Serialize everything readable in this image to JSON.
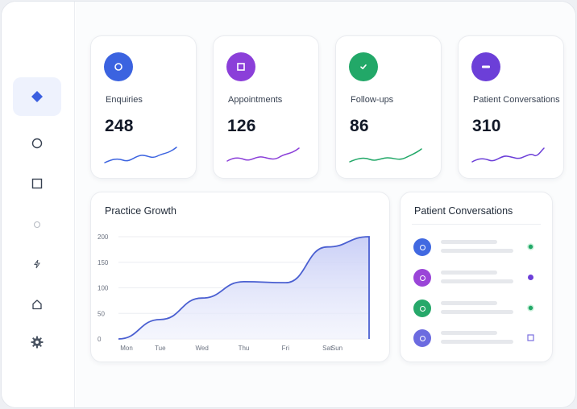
{
  "sidebar": {
    "items": [
      {
        "icon": "diamond-icon",
        "active": true
      },
      {
        "icon": "circle-icon",
        "active": false
      },
      {
        "icon": "square-icon",
        "active": false
      },
      {
        "icon": "small-circle-icon",
        "active": false
      },
      {
        "icon": "bolt-icon",
        "active": false
      },
      {
        "icon": "home-icon",
        "active": false
      },
      {
        "icon": "gear-icon",
        "active": false
      }
    ]
  },
  "stats": [
    {
      "label": "Enquiries",
      "value": "248",
      "color": "#3b63e0",
      "icon": "circle-icon"
    },
    {
      "label": "Appointments",
      "value": "126",
      "color": "#8b3fd9",
      "icon": "square-icon"
    },
    {
      "label": "Follow-ups",
      "value": "86",
      "color": "#22a868",
      "icon": "check-icon"
    },
    {
      "label": "Patient Conversations",
      "value": "310",
      "color": "#6c3fd8",
      "icon": "minus-icon"
    }
  ],
  "growth": {
    "title": "Practice Growth",
    "chart_data": {
      "type": "area",
      "categories": [
        "Mon",
        "Tue",
        "Wed",
        "Thu",
        "Fri",
        "Sat",
        "Sun"
      ],
      "values": [
        0,
        38,
        80,
        112,
        110,
        180,
        200
      ],
      "yticks": [
        0,
        50,
        100,
        150,
        200
      ],
      "ylim": [
        0,
        200
      ],
      "grid": true,
      "color": "#4a5fd1"
    }
  },
  "conversations": {
    "title": "Patient Conversations",
    "rows": [
      {
        "avatar_color": "#4169e1",
        "status": "dot",
        "status_color": "#22a868"
      },
      {
        "avatar_color": "#9a45d8",
        "status": "dot",
        "status_color": "#6c3fd8"
      },
      {
        "avatar_color": "#26a86a",
        "status": "dot",
        "status_color": "#22a868"
      },
      {
        "avatar_color": "#6c6be0",
        "status": "square",
        "status_color": "#7a6fe0"
      }
    ]
  }
}
